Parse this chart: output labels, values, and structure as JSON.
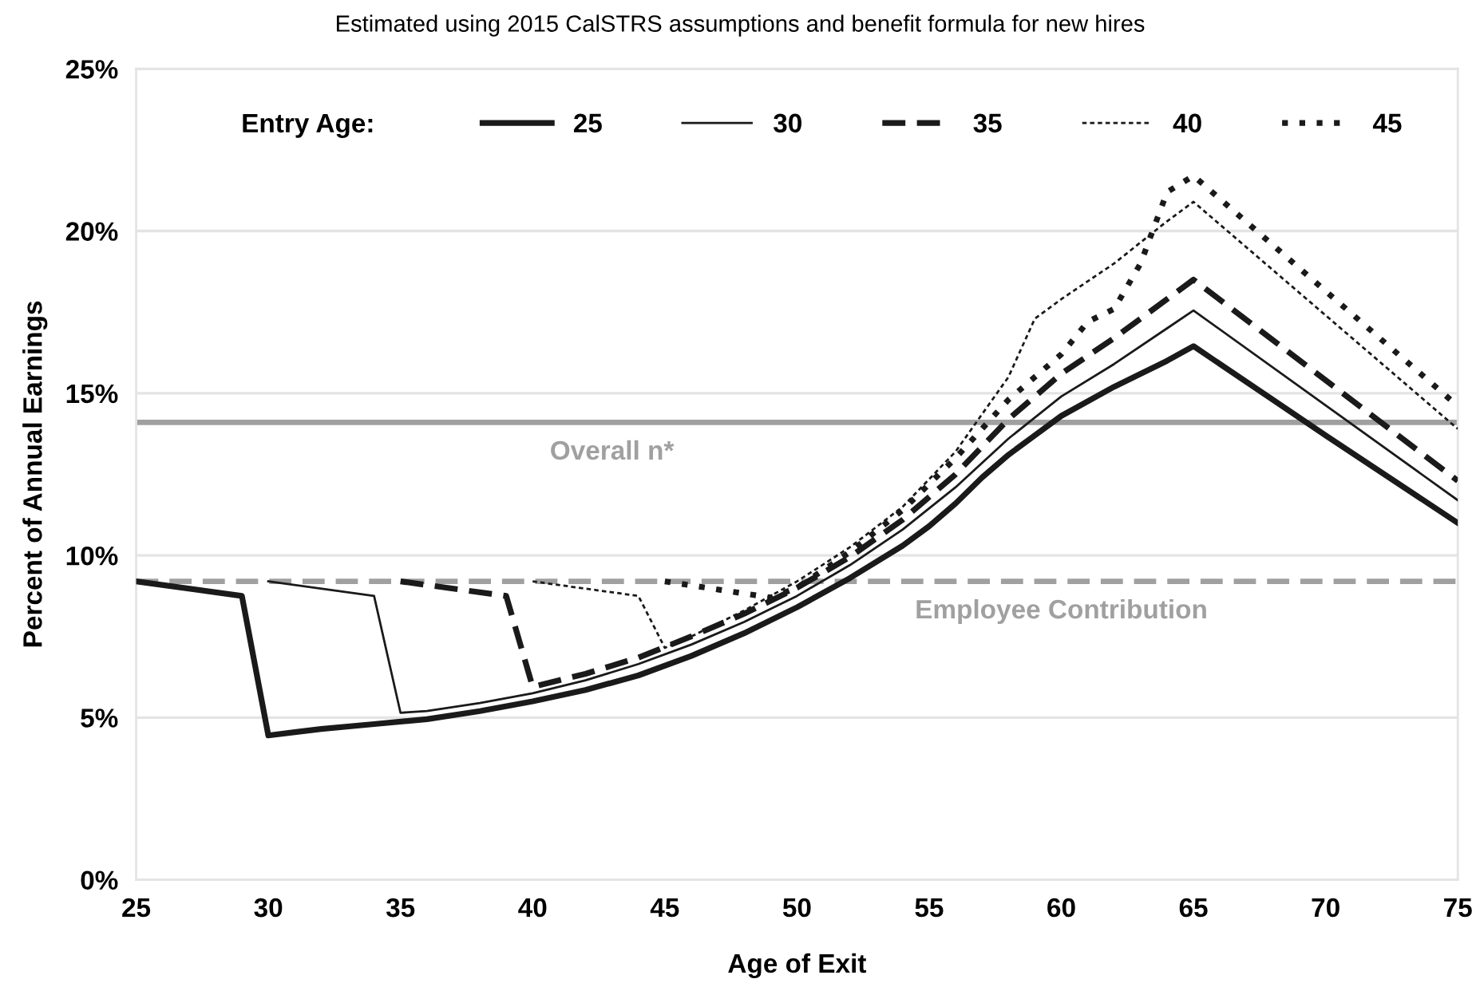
{
  "chart_data": {
    "type": "line",
    "title": "Estimated using 2015 CalSTRS assumptions and benefit formula for new hires",
    "xlabel": "Age of Exit",
    "ylabel": "Percent of Annual Earnings",
    "legend_title": "Entry Age:",
    "xlim": [
      25,
      75
    ],
    "xticks": [
      25,
      30,
      35,
      40,
      45,
      50,
      55,
      60,
      65,
      70,
      75
    ],
    "ylim": [
      0,
      25
    ],
    "yticks": [
      {
        "value": 0,
        "label": "0%"
      },
      {
        "value": 5,
        "label": "5%"
      },
      {
        "value": 10,
        "label": "10%"
      },
      {
        "value": 15,
        "label": "15%"
      },
      {
        "value": 20,
        "label": "20%"
      },
      {
        "value": 25,
        "label": "25%"
      }
    ],
    "grid": "y",
    "legend": "top",
    "marker": "none",
    "ref_lines": [
      {
        "axis": "y",
        "value": 14.1,
        "label": "Overall n*",
        "color": "#a0a0a0",
        "line_style": "solid"
      },
      {
        "axis": "y",
        "value": 9.2,
        "label": "Employee Contribution",
        "color": "#a0a0a0",
        "line_style": "dashed"
      }
    ],
    "series": [
      {
        "name": "25",
        "color": "#1a1a1a",
        "line_style": "solid",
        "x": [
          25,
          29,
          30,
          31,
          32,
          34,
          36,
          38,
          40,
          42,
          44,
          46,
          48,
          50,
          52,
          54,
          55,
          56,
          57,
          58,
          59,
          60,
          62,
          64,
          65,
          70,
          75
        ],
        "values": [
          9.2,
          8.75,
          4.45,
          4.55,
          4.65,
          4.8,
          4.95,
          5.2,
          5.5,
          5.85,
          6.3,
          6.9,
          7.6,
          8.4,
          9.3,
          10.3,
          10.9,
          11.6,
          12.4,
          13.1,
          13.7,
          14.3,
          15.2,
          16.0,
          16.45,
          13.7,
          11.0
        ]
      },
      {
        "name": "30",
        "color": "#1a1a1a",
        "line_style": "solid",
        "x": [
          30,
          34,
          35,
          36,
          38,
          40,
          42,
          44,
          46,
          48,
          50,
          52,
          54,
          56,
          58,
          60,
          62,
          64,
          65,
          75
        ],
        "values": [
          9.2,
          8.75,
          5.15,
          5.2,
          5.45,
          5.75,
          6.15,
          6.65,
          7.25,
          7.95,
          8.75,
          9.7,
          10.8,
          12.1,
          13.6,
          14.9,
          15.9,
          17.0,
          17.55,
          11.7
        ]
      },
      {
        "name": "35",
        "color": "#1a1a1a",
        "line_style": "dashed",
        "x": [
          35,
          39,
          40,
          42,
          44,
          46,
          48,
          50,
          52,
          54,
          56,
          58,
          60,
          62,
          64,
          65,
          75
        ],
        "values": [
          9.2,
          8.75,
          5.95,
          6.35,
          6.85,
          7.5,
          8.2,
          9.0,
          9.95,
          11.1,
          12.5,
          14.2,
          15.6,
          16.7,
          17.9,
          18.5,
          12.3
        ]
      },
      {
        "name": "40",
        "color": "#1a1a1a",
        "line_style": "dashed",
        "x": [
          40,
          44,
          45,
          46,
          48,
          50,
          52,
          54,
          56,
          58,
          59,
          60,
          62,
          64,
          65,
          75
        ],
        "values": [
          9.2,
          8.75,
          7.15,
          7.5,
          8.3,
          9.2,
          10.25,
          11.5,
          13.2,
          15.5,
          17.3,
          17.9,
          19.0,
          20.3,
          20.9,
          13.9
        ]
      },
      {
        "name": "45",
        "color": "#1a1a1a",
        "line_style": "dotted",
        "x": [
          45,
          49,
          50,
          52,
          54,
          56,
          58,
          60,
          61,
          62,
          63,
          64,
          65,
          75
        ],
        "values": [
          9.2,
          8.7,
          9.0,
          10.1,
          11.4,
          13.0,
          14.8,
          16.2,
          17.2,
          17.6,
          19.0,
          21.2,
          21.7,
          14.6
        ]
      }
    ]
  }
}
